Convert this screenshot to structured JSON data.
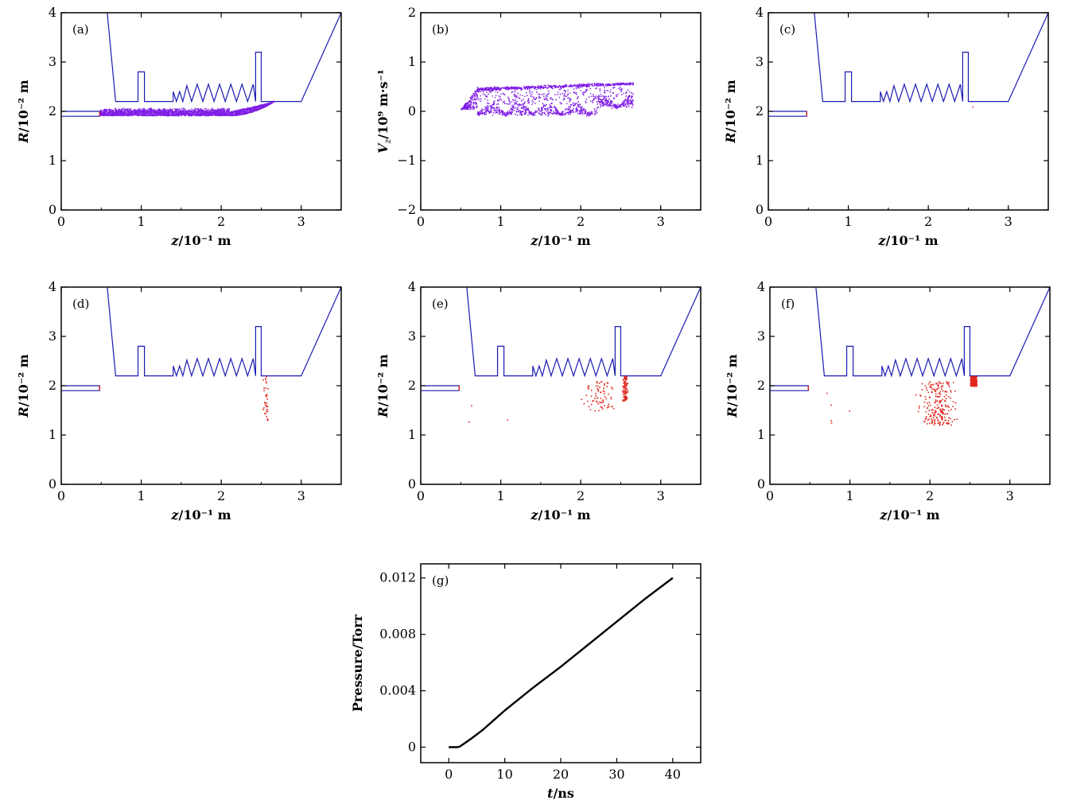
{
  "colors": {
    "geometry": "#1a1ab4",
    "emitter_tip": "#d62020",
    "beam": "#7f1fe6",
    "ions": "#e0261c",
    "curve": "#000000"
  },
  "geometry_outline": {
    "description_units": "z in 10^-1 m, R in 10^-2 m",
    "wall": [
      [
        0.575,
        4.0
      ],
      [
        0.68,
        2.2
      ],
      [
        0.96,
        2.2
      ],
      [
        0.96,
        2.8
      ],
      [
        1.04,
        2.8
      ],
      [
        1.04,
        2.2
      ],
      [
        1.4,
        2.2
      ],
      [
        1.4,
        2.4
      ],
      [
        1.44,
        2.2
      ],
      [
        1.48,
        2.4
      ],
      [
        1.52,
        2.2
      ],
      [
        1.57,
        2.52
      ],
      [
        1.63,
        2.2
      ],
      [
        1.7,
        2.55
      ],
      [
        1.77,
        2.2
      ],
      [
        1.84,
        2.55
      ],
      [
        1.91,
        2.2
      ],
      [
        1.98,
        2.55
      ],
      [
        2.05,
        2.2
      ],
      [
        2.12,
        2.55
      ],
      [
        2.19,
        2.2
      ],
      [
        2.26,
        2.55
      ],
      [
        2.33,
        2.2
      ],
      [
        2.4,
        2.55
      ],
      [
        2.43,
        2.2
      ],
      [
        2.43,
        3.2
      ],
      [
        2.5,
        3.2
      ],
      [
        2.5,
        2.2
      ],
      [
        3.0,
        2.2
      ],
      [
        3.5,
        4.0
      ]
    ],
    "cathode": [
      [
        0.0,
        2.0
      ],
      [
        0.48,
        2.0
      ],
      [
        0.48,
        1.9
      ],
      [
        0.0,
        1.9
      ]
    ]
  },
  "chart_data": [
    {
      "panel": "a",
      "type": "scatter",
      "label": "(a)",
      "xlabel_var": "z",
      "xlabel_unit": "/10⁻¹ m",
      "ylabel_var": "R",
      "ylabel_unit": "/10⁻² m",
      "xlim": [
        0,
        3.5
      ],
      "ylim": [
        0,
        4
      ],
      "xticks": [
        "0",
        "1",
        "2",
        "3"
      ],
      "yticks": [
        "0",
        "1",
        "2",
        "3",
        "4"
      ],
      "series": [
        {
          "kind": "beam_R",
          "z_range": [
            0.48,
            2.65
          ],
          "R_range": [
            1.9,
            2.2
          ],
          "color": "#7f1fe6"
        }
      ]
    },
    {
      "panel": "b",
      "type": "scatter",
      "label": "(b)",
      "xlabel_var": "z",
      "xlabel_unit": "/10⁻¹ m",
      "ylabel_var": "V",
      "ylabel_sub": "z",
      "ylabel_unit": "/10⁹ m·s⁻¹",
      "xlim": [
        0,
        3.5
      ],
      "ylim": [
        -2,
        2
      ],
      "xticks": [
        "0",
        "1",
        "2",
        "3"
      ],
      "yticks": [
        "−2",
        "−1",
        "0",
        "1",
        "2"
      ],
      "series": [
        {
          "kind": "beam_V",
          "z_range": [
            0.48,
            2.65
          ],
          "V_range": [
            -0.15,
            0.6
          ],
          "color": "#7f1fe6"
        }
      ]
    },
    {
      "panel": "c",
      "type": "scatter",
      "label": "(c)",
      "xlabel_var": "z",
      "xlabel_unit": "/10⁻¹ m",
      "ylabel_var": "R",
      "ylabel_unit": "/10⁻² m",
      "xlim": [
        0,
        3.5
      ],
      "ylim": [
        0,
        4
      ],
      "xticks": [
        "0",
        "1",
        "2",
        "3"
      ],
      "yticks": [
        "0",
        "1",
        "2",
        "3",
        "4"
      ],
      "series": [
        {
          "kind": "ions",
          "center": [
            2.55,
            2.1
          ],
          "count": 1,
          "color": "#e0261c"
        }
      ]
    },
    {
      "panel": "d",
      "type": "scatter",
      "label": "(d)",
      "xlabel_var": "z",
      "xlabel_unit": "/10⁻¹ m",
      "ylabel_var": "R",
      "ylabel_unit": "/10⁻² m",
      "xlim": [
        0,
        3.5
      ],
      "ylim": [
        0,
        4
      ],
      "xticks": [
        "0",
        "1",
        "2",
        "3"
      ],
      "yticks": [
        "0",
        "1",
        "2",
        "3",
        "4"
      ],
      "series": [
        {
          "kind": "ions",
          "center": [
            2.55,
            1.75
          ],
          "count": 35,
          "color": "#e0261c"
        }
      ]
    },
    {
      "panel": "e",
      "type": "scatter",
      "label": "(e)",
      "xlabel_var": "z",
      "xlabel_unit": "/10⁻¹ m",
      "ylabel_var": "R",
      "ylabel_unit": "/10⁻² m",
      "xlim": [
        0,
        3.5
      ],
      "ylim": [
        0,
        4
      ],
      "xticks": [
        "0",
        "1",
        "2",
        "3"
      ],
      "yticks": [
        "0",
        "1",
        "2",
        "3",
        "4"
      ],
      "series": [
        {
          "kind": "ions",
          "center": [
            2.45,
            1.75
          ],
          "count": 170,
          "color": "#e0261c"
        }
      ]
    },
    {
      "panel": "f",
      "type": "scatter",
      "label": "(f)",
      "xlabel_var": "z",
      "xlabel_unit": "/10⁻¹ m",
      "ylabel_var": "R",
      "ylabel_unit": "/10⁻² m",
      "xlim": [
        0,
        3.5
      ],
      "ylim": [
        0,
        4
      ],
      "xticks": [
        "0",
        "1",
        "2",
        "3"
      ],
      "yticks": [
        "0",
        "1",
        "2",
        "3",
        "4"
      ],
      "series": [
        {
          "kind": "ions",
          "center": [
            2.3,
            1.75
          ],
          "count": 420,
          "color": "#e0261c"
        }
      ]
    },
    {
      "panel": "g",
      "type": "line",
      "label": "(g)",
      "xlabel_var": "t",
      "xlabel_unit": "/ns",
      "ylabel_var": "",
      "ylabel_unit": "Pressure/Torr",
      "xlim": [
        -5,
        45
      ],
      "ylim": [
        -0.0011,
        0.013
      ],
      "xticks": [
        "0",
        "10",
        "20",
        "30",
        "40"
      ],
      "yticks": [
        "0",
        "0.004",
        "0.008",
        "0.012"
      ],
      "series": [
        {
          "x": [
            0,
            1,
            1.5,
            2,
            4,
            6,
            8,
            10,
            15,
            20,
            25,
            30,
            35,
            40
          ],
          "y": [
            0,
            0,
            0,
            5e-05,
            0.0006,
            0.0012,
            0.0019,
            0.0026,
            0.0042,
            0.0057,
            0.0073,
            0.0089,
            0.0105,
            0.012
          ],
          "color": "#000000"
        }
      ]
    }
  ]
}
